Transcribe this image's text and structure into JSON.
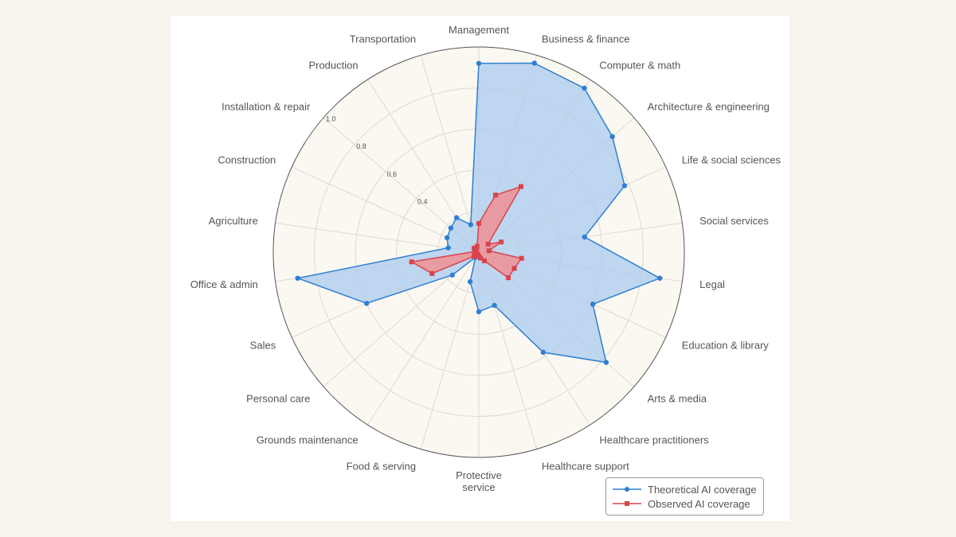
{
  "chart_data": {
    "type": "radar",
    "categories": [
      "Management",
      "Business & finance",
      "Computer & math",
      "Architecture & engineering",
      "Life & social sciences",
      "Social services",
      "Legal",
      "Education & library",
      "Arts & media",
      "Healthcare practitioners",
      "Healthcare support",
      "Protective service",
      "Food & serving",
      "Grounds maintenance",
      "Personal care",
      "Sales",
      "Office & admin",
      "Agriculture",
      "Construction",
      "Installation & repair",
      "Production",
      "Transportation"
    ],
    "radial_range": [
      0,
      1.0
    ],
    "radial_ticks": [
      "0.4",
      "0.6",
      "0.8",
      "1.0"
    ],
    "grid": true,
    "legend_placement": "bottom-right",
    "series": [
      {
        "name": "Theoretical AI coverage",
        "color": "#2f7fd1",
        "fill": "#a9cbee",
        "marker": "circle",
        "values": [
          0.92,
          0.96,
          0.95,
          0.86,
          0.78,
          0.52,
          0.89,
          0.61,
          0.82,
          0.58,
          0.27,
          0.29,
          0.15,
          0.03,
          0.17,
          0.6,
          0.89,
          0.15,
          0.17,
          0.18,
          0.2,
          0.14
        ]
      },
      {
        "name": "Observed AI coverage",
        "color": "#d9434b",
        "fill": "#f28c8f",
        "marker": "square",
        "values": [
          0.14,
          0.29,
          0.38,
          0.06,
          0.12,
          0.05,
          0.21,
          0.19,
          0.19,
          0.05,
          0.03,
          0.02,
          0.02,
          0.01,
          0.03,
          0.25,
          0.33,
          0.02,
          0.02,
          0.03,
          0.02,
          0.03
        ]
      }
    ]
  }
}
